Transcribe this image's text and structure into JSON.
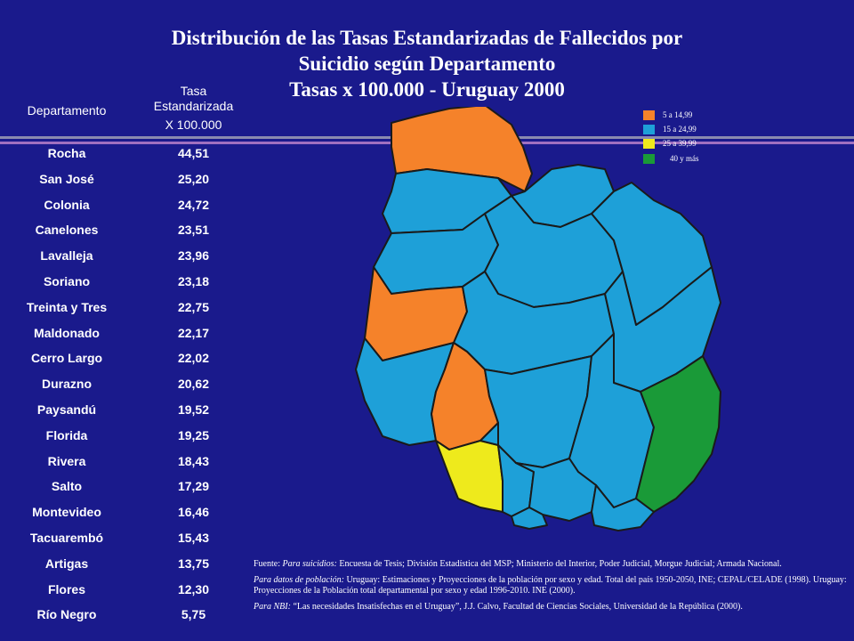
{
  "title": {
    "line1": "Distribución de las Tasas Estandarizadas de Fallecidos por",
    "line2": "Suicidio según Departamento",
    "line3": "Tasas  x 100.000  - Uruguay 2000"
  },
  "table": {
    "header_department": "Departamento",
    "header_rate_line1": "Tasa",
    "header_rate_line2": "Estandarizada",
    "header_rate_line3": "X 100.000",
    "rows": [
      {
        "name": "Rocha",
        "value": "44,51"
      },
      {
        "name": "San José",
        "value": "25,20"
      },
      {
        "name": "Colonia",
        "value": "24,72"
      },
      {
        "name": "Canelones",
        "value": "23,51"
      },
      {
        "name": "Lavalleja",
        "value": "23,96"
      },
      {
        "name": "Soriano",
        "value": "23,18"
      },
      {
        "name": "Treinta y Tres",
        "value": "22,75"
      },
      {
        "name": "Maldonado",
        "value": "22,17"
      },
      {
        "name": "Cerro Largo",
        "value": "22,02"
      },
      {
        "name": "Durazno",
        "value": "20,62"
      },
      {
        "name": "Paysandú",
        "value": "19,52"
      },
      {
        "name": "Florida",
        "value": "19,25"
      },
      {
        "name": "Rivera",
        "value": "18,43"
      },
      {
        "name": "Salto",
        "value": "17,29"
      },
      {
        "name": "Montevideo",
        "value": "16,46"
      },
      {
        "name": "Tacuarembó",
        "value": "15,43"
      },
      {
        "name": "Artigas",
        "value": "13,75"
      },
      {
        "name": "Flores",
        "value": "12,30"
      },
      {
        "name": "Río Negro",
        "value": "5,75"
      }
    ]
  },
  "legend": [
    {
      "label": "5 a 14,99",
      "color": "#f5822a"
    },
    {
      "label": "15 a 24,99",
      "color": "#1ea0d8"
    },
    {
      "label": "25 a 39,99",
      "color": "#eeea1c"
    },
    {
      "label": "40 y más",
      "color": "#1a9a38"
    }
  ],
  "colors": {
    "background": "#1a1a8c",
    "orange": "#f5822a",
    "blue": "#1ea0d8",
    "yellow": "#eeea1c",
    "green": "#1a9a38"
  },
  "source": {
    "p1_label": "Fuente: ",
    "p1_italic": "Para suicidios:",
    "p1_text": " Encuesta de Tesis; División Estadística del MSP; Ministerio del Interior, Poder Judicial, Morgue Judicial; Armada Nacional.",
    "p2_italic": "Para datos de población:",
    "p2_text": " Uruguay: Estimaciones  y Proyecciones de la población por sexo y edad. Total del país 1950-2050, INE; CEPAL/CELADE (1998). Uruguay: Proyecciones de la Población total departamental  por sexo y edad  1996-2010. INE (2000).",
    "p3_italic": "Para NBI:",
    "p3_text": " “Las necesidades Insatisfechas en el Uruguay”, J.J. Calvo, Facultad de Ciencias Sociales, Universidad de la República (2000)."
  }
}
